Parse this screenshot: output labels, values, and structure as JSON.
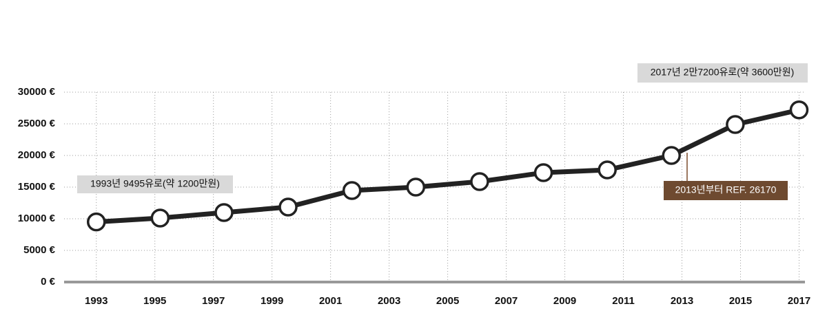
{
  "chart_data": {
    "type": "line",
    "x": [
      1993,
      1995.18,
      1997.36,
      1999.55,
      2001.73,
      2003.91,
      2006.09,
      2008.27,
      2010.45,
      2012.64,
      2014.82,
      2017
    ],
    "series": [
      {
        "color": "#222222",
        "values": [
          9495,
          10110,
          10980,
          11850,
          14460,
          15000,
          15870,
          17280,
          17720,
          20000,
          24890,
          27200
        ]
      }
    ],
    "xlim": [
      1991.9,
      2017.2
    ],
    "xticks": [
      1993,
      1995,
      1997,
      1999,
      2001,
      2003,
      2005,
      2007,
      2009,
      2011,
      2013,
      2015,
      2017
    ],
    "ylim": [
      0,
      30000
    ],
    "yticks": [
      {
        "value": 0,
        "label": "0 €"
      },
      {
        "value": 5000,
        "label": "5000 €"
      },
      {
        "value": 10000,
        "label": "10000 €"
      },
      {
        "value": 15000,
        "label": "15000 €"
      },
      {
        "value": 20000,
        "label": "20000 €"
      },
      {
        "value": 25000,
        "label": "25000 €"
      },
      {
        "value": 30000,
        "label": "30000 €"
      }
    ],
    "grid": true,
    "annotations": [
      "1993년 9495유로(약 1200만원)",
      "2017년 2만7200유로(약 3600만원)",
      "2013년부터 REF. 26170"
    ]
  }
}
